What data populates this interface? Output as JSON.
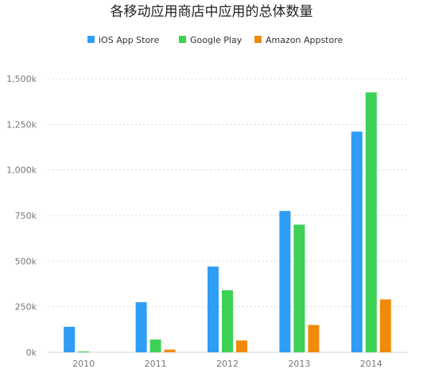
{
  "chart_data": {
    "type": "bar",
    "title": "各移动应用商店中应用的总体数量",
    "xlabel": "",
    "ylabel": "",
    "categories": [
      "2010",
      "2011",
      "2012",
      "2013",
      "2014"
    ],
    "series": [
      {
        "name": "iOS App Store",
        "color": "#2f9df4",
        "values": [
          140,
          275,
          470,
          775,
          1210
        ]
      },
      {
        "name": "Google Play",
        "color": "#3dd156",
        "values": [
          5,
          70,
          340,
          700,
          1425
        ]
      },
      {
        "name": "Amazon Appstore",
        "color": "#f08a0b",
        "values": [
          0,
          15,
          65,
          150,
          290
        ]
      }
    ],
    "ylim": [
      0,
      1500
    ],
    "yticks": [
      0,
      250,
      500,
      750,
      1000,
      1250,
      1500
    ],
    "ytick_labels": [
      "0k",
      "250k",
      "500k",
      "750k",
      "1,000k",
      "1,250k",
      "1,500k"
    ],
    "grid": "horizontal dashed",
    "legend_position": "top-center"
  }
}
